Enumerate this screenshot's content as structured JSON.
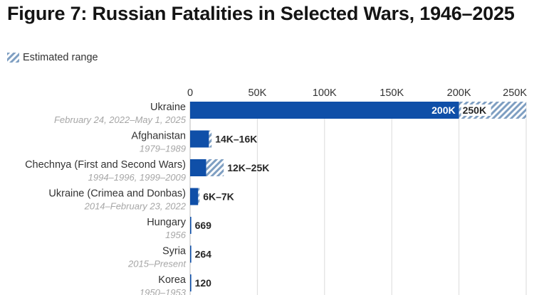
{
  "title": "Figure 7: Russian Fatalities in Selected Wars, 1946–2025",
  "legend": {
    "label": "Estimated range"
  },
  "colors": {
    "bar": "#0f4fa8",
    "hatch": "#7f9fc2",
    "grid": "#dadada"
  },
  "chart_data": {
    "type": "bar",
    "orientation": "horizontal",
    "title": "Figure 7: Russian Fatalities in Selected Wars, 1946–2025",
    "xlim": [
      0,
      250000
    ],
    "ticks": [
      {
        "value": 0,
        "label": "0"
      },
      {
        "value": 50000,
        "label": "50K"
      },
      {
        "value": 100000,
        "label": "100K"
      },
      {
        "value": 150000,
        "label": "150K"
      },
      {
        "value": 200000,
        "label": "200K"
      },
      {
        "value": 250000,
        "label": "250K"
      }
    ],
    "grid": true,
    "legend_position": "top-left",
    "series": [
      {
        "name": "Estimated range",
        "pattern": "hatched"
      }
    ],
    "bars": [
      {
        "category": "Ukraine",
        "dates": "February 24, 2022–May 1, 2025",
        "low": 200000,
        "high": 250000,
        "low_label": "200K",
        "high_label": "250K",
        "label_position": "inside"
      },
      {
        "category": "Afghanistan",
        "dates": "1979–1989",
        "low": 14000,
        "high": 16000,
        "label": "14K–16K"
      },
      {
        "category": "Chechnya (First and Second Wars)",
        "dates": "1994–1996, 1999–2009",
        "low": 12000,
        "high": 25000,
        "label": "12K–25K"
      },
      {
        "category": "Ukraine (Crimea and Donbas)",
        "dates": "2014–February 23, 2022",
        "low": 6000,
        "high": 7000,
        "label": "6K–7K"
      },
      {
        "category": "Hungary",
        "dates": "1956",
        "low": 669,
        "high": 669,
        "label": "669"
      },
      {
        "category": "Syria",
        "dates": "2015–Present",
        "low": 264,
        "high": 264,
        "label": "264"
      },
      {
        "category": "Korea",
        "dates": "1950–1953",
        "low": 120,
        "high": 120,
        "label": "120"
      }
    ]
  }
}
